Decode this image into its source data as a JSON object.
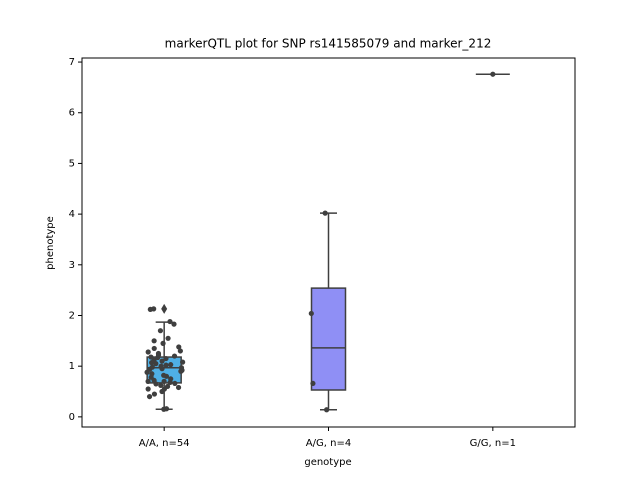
{
  "chart_data": {
    "type": "box",
    "title": "markerQTL plot for SNP rs141585079 and marker_212",
    "x_label": "genotype",
    "y_label": "phenotype",
    "categories": [
      "A/A, n=54",
      "A/G, n=4",
      "G/G, n=1"
    ],
    "colors": [
      "#4fb0e6",
      "#8f8ff5",
      "#d98ad9"
    ],
    "boxes": [
      {
        "whisker_low": 0.15,
        "q1": 0.67,
        "median": 0.97,
        "q3": 1.18,
        "whisker_high": 1.87,
        "outliers": [
          2.13
        ]
      },
      {
        "whisker_low": 0.14,
        "q1": 0.53,
        "median": 1.36,
        "q3": 2.54,
        "whisker_high": 4.02,
        "outliers": []
      },
      {
        "whisker_low": 6.76,
        "q1": 6.76,
        "median": 6.76,
        "q3": 6.76,
        "whisker_high": 6.76,
        "outliers": []
      }
    ],
    "points": [
      [
        0.15,
        0.16,
        0.4,
        0.45,
        0.5,
        0.55,
        0.55,
        0.58,
        0.6,
        0.62,
        0.65,
        0.66,
        0.68,
        0.7,
        0.7,
        0.72,
        0.75,
        0.78,
        0.8,
        0.82,
        0.85,
        0.88,
        0.9,
        0.92,
        0.94,
        0.95,
        0.97,
        0.98,
        1.0,
        1.02,
        1.03,
        1.05,
        1.07,
        1.08,
        1.1,
        1.12,
        1.15,
        1.17,
        1.18,
        1.2,
        1.22,
        1.25,
        1.28,
        1.3,
        1.35,
        1.38,
        1.45,
        1.5,
        1.55,
        1.7,
        1.83,
        1.88,
        2.12,
        2.13
      ],
      [
        0.14,
        0.66,
        2.04,
        4.02
      ],
      [
        6.76
      ]
    ],
    "ylim": [
      -0.2,
      7.08
    ],
    "yticks": [
      0,
      1,
      2,
      3,
      4,
      5,
      6,
      7
    ]
  }
}
